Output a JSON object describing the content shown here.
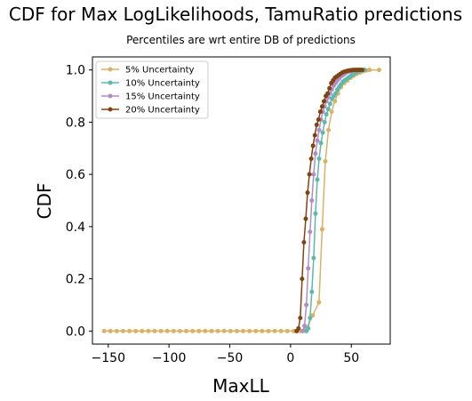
{
  "chart_data": {
    "type": "line",
    "title": "CDF for Max LogLikelihoods, TamuRatio predictions",
    "subtitle": "Percentiles are wrt entire DB of predictions",
    "xlabel": "MaxLL",
    "ylabel": "CDF",
    "xlim": [
      -163,
      82
    ],
    "ylim": [
      -0.05,
      1.05
    ],
    "x_ticks": [
      -150,
      -100,
      -50,
      0,
      50
    ],
    "x_tick_labels": [
      "−150",
      "−100",
      "−50",
      "0",
      "50"
    ],
    "y_ticks": [
      0.0,
      0.2,
      0.4,
      0.6,
      0.8,
      1.0
    ],
    "y_tick_labels": [
      "0.0",
      "0.2",
      "0.4",
      "0.6",
      "0.8",
      "1.0"
    ],
    "grid": false,
    "legend_position": "top-left",
    "series": [
      {
        "name": "5% Uncertainty",
        "color": "#d9b267",
        "x": [
          -153.4,
          -148.2,
          -143.0,
          -137.8,
          -132.6,
          -127.4,
          -122.2,
          -117.0,
          -111.8,
          -106.6,
          -101.4,
          -96.2,
          -91.0,
          -85.8,
          -80.6,
          -75.4,
          -70.2,
          -65.0,
          -59.8,
          -54.6,
          -49.4,
          -44.2,
          -39.0,
          -33.8,
          -28.6,
          -23.4,
          -18.2,
          -13.0,
          -7.8,
          -2.6,
          2.6,
          7.8,
          13.0,
          18.2,
          23.4,
          26.0,
          28.6,
          31.2,
          33.8,
          36.4,
          39.0,
          41.6,
          44.2,
          46.8,
          49.4,
          52.0,
          54.6,
          57.2,
          59.8,
          62.4,
          65.0,
          72.8
        ],
        "y": [
          0,
          0,
          0,
          0,
          0,
          0,
          0,
          0,
          0,
          0,
          0,
          0,
          0,
          0,
          0,
          0,
          0,
          0,
          0,
          0,
          0,
          0,
          0,
          0,
          0,
          0,
          0,
          0,
          0,
          0,
          0,
          0,
          0.01,
          0.06,
          0.11,
          0.39,
          0.65,
          0.77,
          0.84,
          0.88,
          0.91,
          0.935,
          0.95,
          0.96,
          0.97,
          0.978,
          0.985,
          0.99,
          0.995,
          0.998,
          1.0,
          1.0
        ]
      },
      {
        "name": "10% Uncertainty",
        "color": "#5cb9ad",
        "x": [
          13.0,
          14.5,
          16.0,
          17.5,
          19.0,
          20.5,
          22.0,
          23.5,
          25.0,
          26.5,
          28.0,
          29.5,
          31.0,
          32.5,
          34.0,
          35.5,
          37.0,
          38.5,
          40.0,
          41.5,
          43.0,
          44.5,
          46.0,
          47.5,
          49.0,
          50.5,
          52.0,
          53.5,
          55.0,
          56.5,
          58.0,
          59.5,
          61.0
        ],
        "y": [
          0,
          0.01,
          0.05,
          0.15,
          0.28,
          0.45,
          0.58,
          0.66,
          0.72,
          0.76,
          0.8,
          0.83,
          0.85,
          0.87,
          0.89,
          0.9,
          0.91,
          0.925,
          0.935,
          0.945,
          0.955,
          0.96,
          0.965,
          0.97,
          0.975,
          0.98,
          0.985,
          0.99,
          0.993,
          0.996,
          0.998,
          0.999,
          1.0
        ]
      },
      {
        "name": "15% Uncertainty",
        "color": "#b48cc4",
        "x": [
          10.0,
          11.5,
          13.0,
          14.5,
          16.0,
          17.5,
          19.0,
          20.5,
          22.0,
          23.5,
          25.0,
          26.5,
          28.0,
          29.5,
          31.0,
          32.5,
          34.0,
          35.5,
          37.0,
          38.5,
          40.0,
          41.5,
          43.0,
          44.5,
          46.0,
          47.5,
          49.0,
          50.5,
          52.0,
          53.5,
          55.0,
          56.5,
          58.0
        ],
        "y": [
          0,
          0.02,
          0.1,
          0.24,
          0.38,
          0.5,
          0.6,
          0.68,
          0.73,
          0.77,
          0.81,
          0.84,
          0.86,
          0.88,
          0.895,
          0.91,
          0.925,
          0.94,
          0.95,
          0.96,
          0.968,
          0.975,
          0.98,
          0.985,
          0.99,
          0.993,
          0.995,
          0.997,
          0.998,
          0.999,
          1.0,
          1.0,
          1.0
        ]
      },
      {
        "name": "20% Uncertainty",
        "color": "#7f4412",
        "x": [
          5.0,
          6.5,
          8.0,
          9.5,
          11.0,
          12.5,
          14.0,
          15.5,
          17.0,
          18.5,
          20.0,
          21.5,
          23.0,
          24.5,
          26.0,
          27.5,
          29.0,
          30.5,
          32.0,
          33.5,
          35.0,
          36.5,
          38.0,
          39.5,
          41.0,
          42.5,
          44.0,
          45.5,
          47.0,
          48.5,
          50.0,
          51.5,
          53.0,
          54.5,
          56.0,
          57.5,
          59.0
        ],
        "y": [
          0,
          0.01,
          0.05,
          0.2,
          0.34,
          0.43,
          0.53,
          0.6,
          0.66,
          0.71,
          0.75,
          0.79,
          0.81,
          0.84,
          0.86,
          0.88,
          0.9,
          0.91,
          0.93,
          0.95,
          0.96,
          0.97,
          0.975,
          0.98,
          0.985,
          0.99,
          0.993,
          0.995,
          0.997,
          0.998,
          0.999,
          1.0,
          1.0,
          1.0,
          1.0,
          1.0,
          1.0
        ]
      }
    ]
  }
}
